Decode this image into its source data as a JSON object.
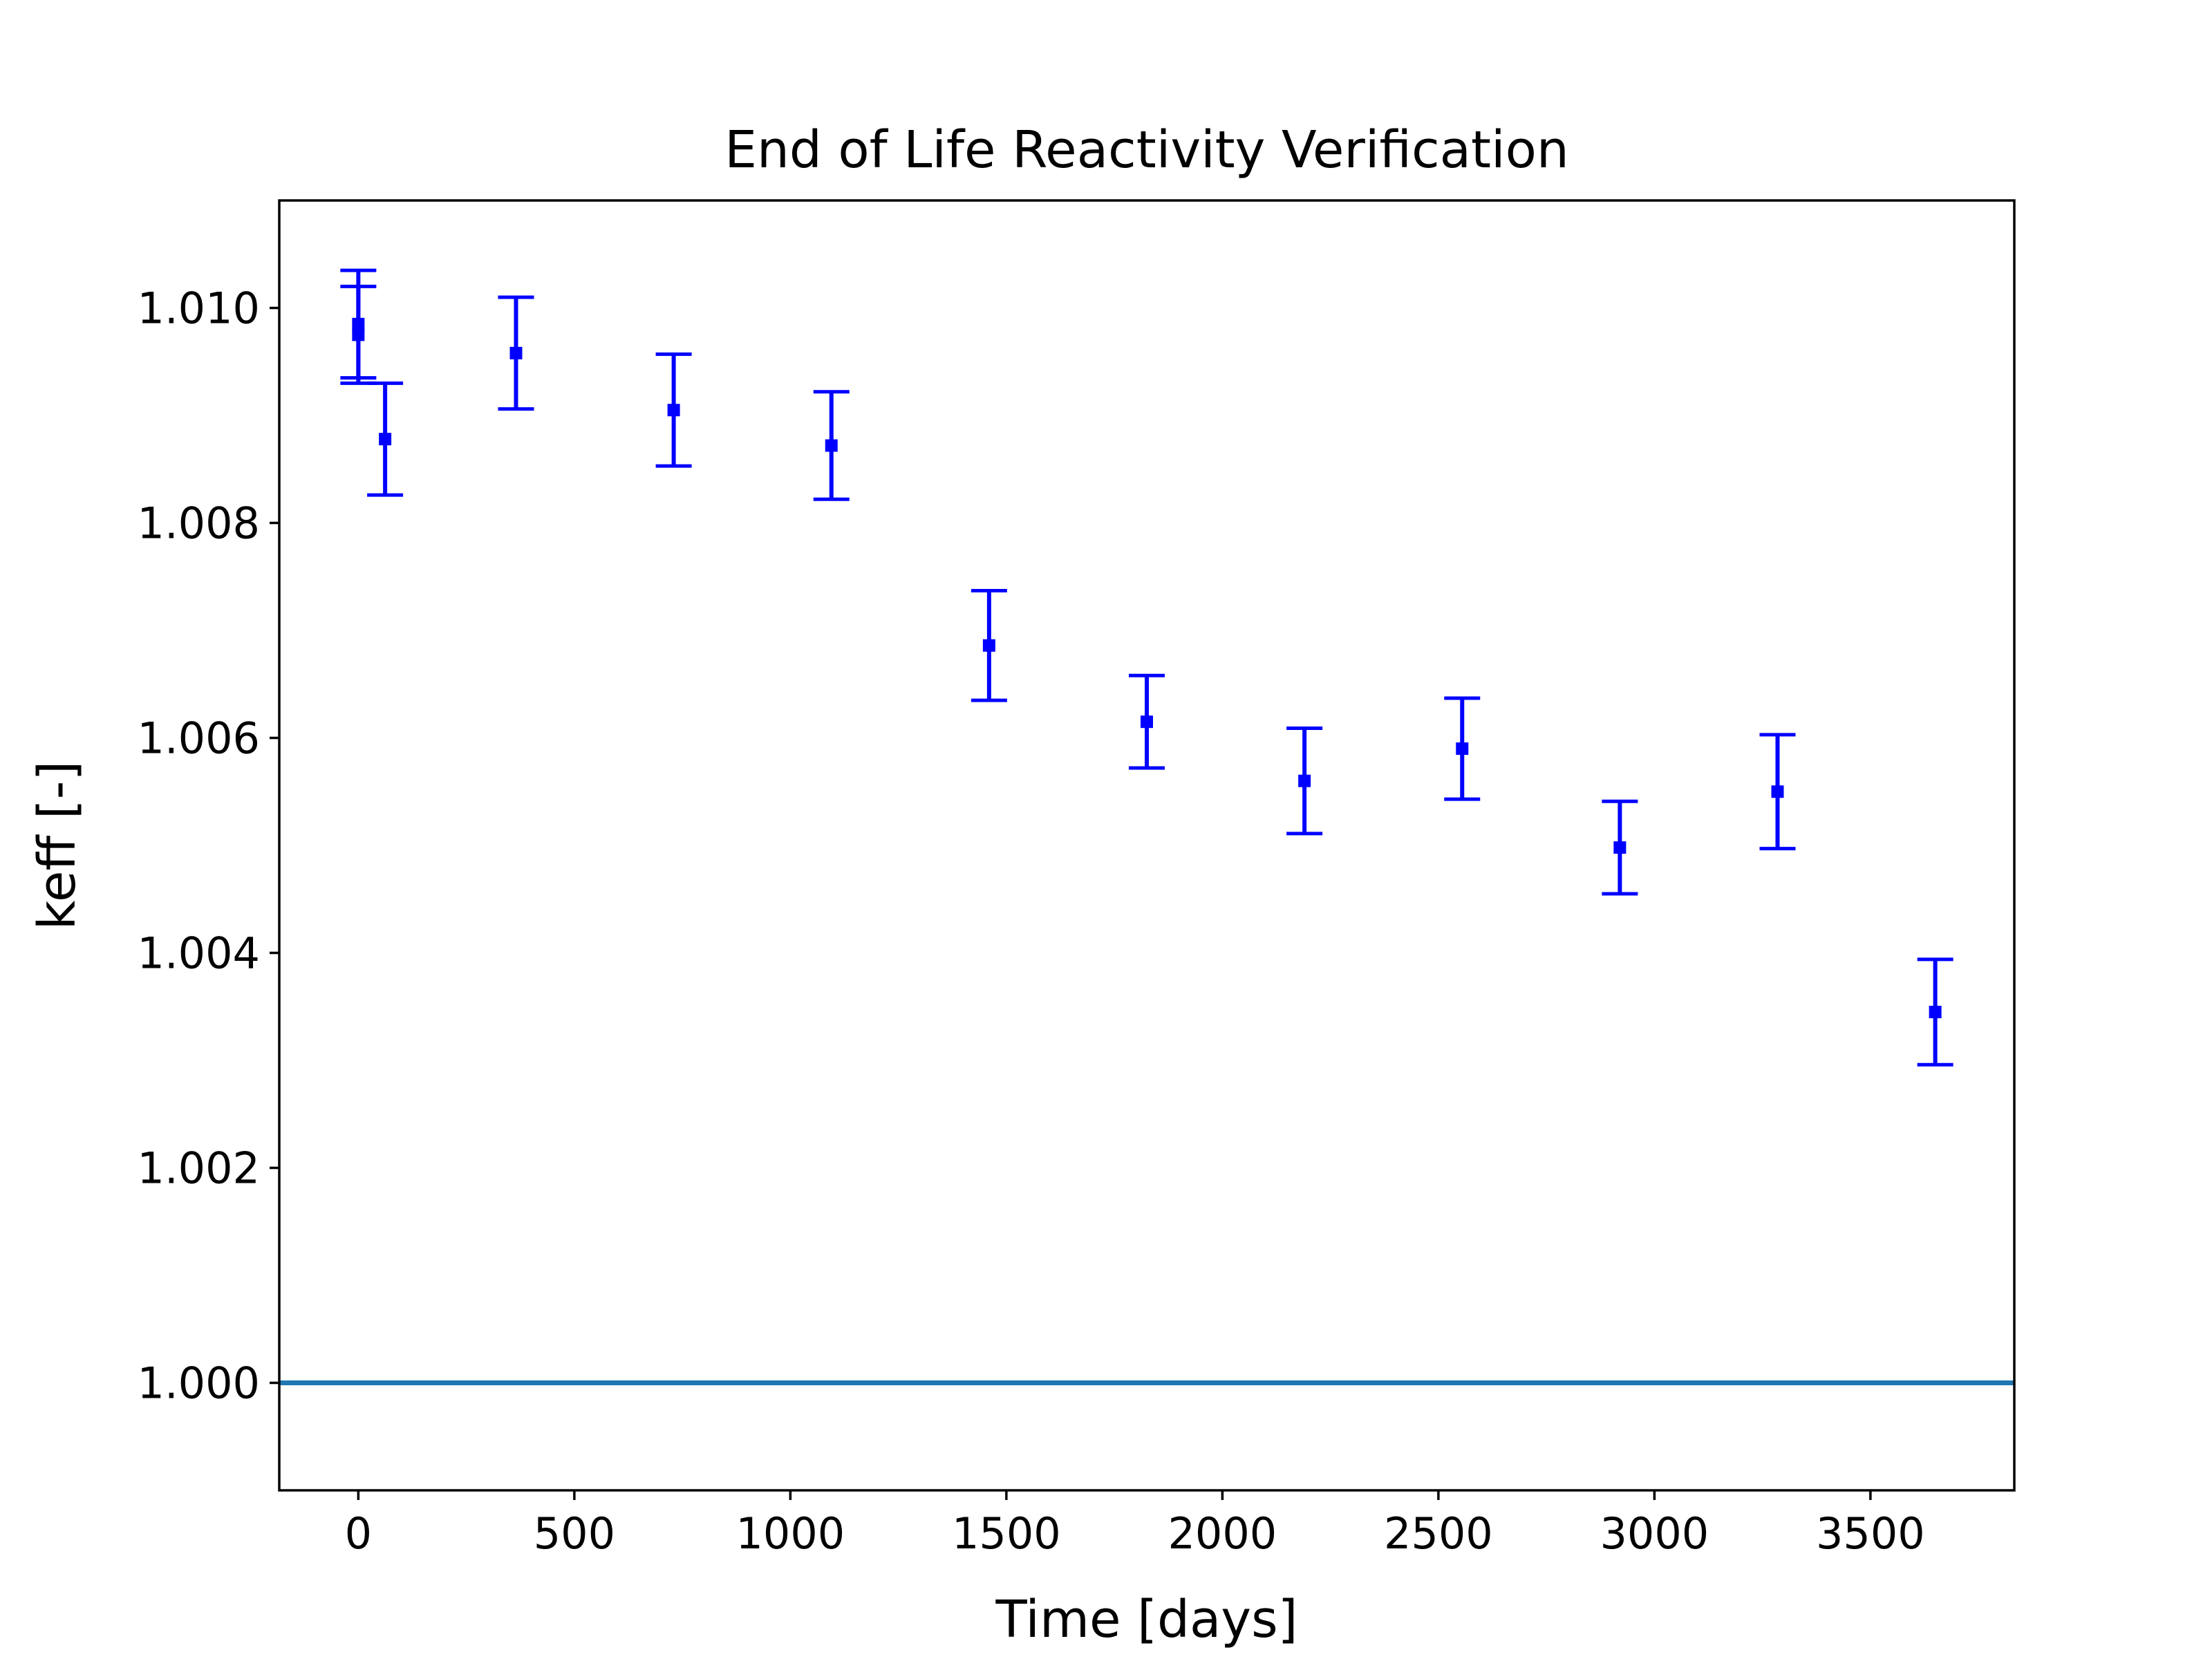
{
  "chart_data": {
    "type": "scatter",
    "title": "End of Life Reactivity Verification",
    "xlabel": "Time [days]",
    "ylabel": "keff [-]",
    "xlim": [
      -183,
      3833
    ],
    "ylim": [
      0.999,
      1.011
    ],
    "xticks": [
      0,
      500,
      1000,
      1500,
      2000,
      2500,
      3000,
      3500
    ],
    "xtick_labels": [
      "0",
      "500",
      "1000",
      "1500",
      "2000",
      "2500",
      "3000",
      "3500"
    ],
    "yticks": [
      1.0,
      1.002,
      1.004,
      1.006,
      1.008,
      1.01
    ],
    "ytick_labels": [
      "1.000",
      "1.002",
      "1.004",
      "1.006",
      "1.008",
      "1.010"
    ],
    "grid": false,
    "colors": {
      "points": "#0000ff",
      "reference_line": "#1f77b4"
    },
    "series": [
      {
        "marker": "square",
        "x": [
          0,
          0,
          62,
          365,
          730,
          1095,
          1460,
          1825,
          2190,
          2555,
          2920,
          3285,
          3650
        ],
        "y": [
          1.00985,
          1.00975,
          1.00878,
          1.00958,
          1.00905,
          1.00872,
          1.00686,
          1.00615,
          1.0056,
          1.0059,
          1.00498,
          1.0055,
          1.00345
        ],
        "yerr": [
          0.0005,
          0.00045,
          0.00052,
          0.00052,
          0.00052,
          0.0005,
          0.00051,
          0.00043,
          0.00049,
          0.00047,
          0.00043,
          0.00053,
          0.00049
        ]
      }
    ],
    "reference_lines": [
      {
        "orientation": "horizontal",
        "y": 1.0
      }
    ]
  }
}
